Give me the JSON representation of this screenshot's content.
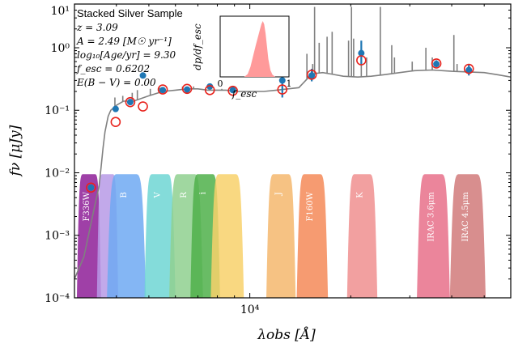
{
  "chart_data": {
    "type": "scatter",
    "title": "",
    "xlabel": "λobs [Å]",
    "ylabel": "fν [μJy]",
    "xscale": "log",
    "yscale": "log",
    "xlim": [
      3000,
      60000
    ],
    "ylim": [
      0.0001,
      5
    ],
    "x_tick_labels": [
      {
        "value": 10000,
        "label": "10⁴"
      }
    ],
    "y_tick_labels": [
      {
        "value": 0.0001,
        "label": "10⁻⁴"
      },
      {
        "value": 0.001,
        "label": "10⁻³"
      },
      {
        "value": 0.01,
        "label": "10⁻²"
      },
      {
        "value": 0.1,
        "label": "10⁻¹"
      },
      {
        "value": 1,
        "label": "10⁰"
      },
      {
        "value": 10,
        "label": "10¹"
      }
    ],
    "info_box": {
      "heading": "Stacked Silver Sample",
      "lines": [
        "z = 3.09",
        "A = 2.49 [M☉ yr⁻¹]",
        "log₁₀[Age/yr] = 9.30",
        "f_esc = 0.6202",
        "E(B − V) = 0.00"
      ]
    },
    "inset": {
      "xlabel": "f_esc",
      "ylabel": "dp/df_esc",
      "x_tick_labels": [
        "0",
        "1"
      ],
      "pdf_color": "#ff9a9a",
      "pdf_x": [
        0.35,
        0.4,
        0.44,
        0.48,
        0.52,
        0.55,
        0.58,
        0.6,
        0.62,
        0.64,
        0.66,
        0.68,
        0.7,
        0.73,
        0.76,
        0.8
      ],
      "pdf_y": [
        0.0,
        0.05,
        0.18,
        0.38,
        0.58,
        0.72,
        0.86,
        0.95,
        1.0,
        0.94,
        0.78,
        0.55,
        0.32,
        0.12,
        0.04,
        0.0
      ]
    },
    "model_spectrum": {
      "color": "#808080",
      "x": [
        3000,
        3200,
        3450,
        3550,
        3600,
        3650,
        3700,
        3780,
        3850,
        4000,
        4200,
        4500,
        5000,
        5500,
        6000,
        6500,
        7000,
        7500,
        8000,
        8500,
        9000,
        10000,
        11000,
        12000,
        13000,
        14000,
        14500,
        15000,
        15800,
        16500,
        17500,
        19000,
        21000,
        23000,
        25000,
        28000,
        31000,
        35000,
        40000,
        45000,
        50000,
        55000,
        60000
      ],
      "y": [
        0.0002,
        0.00045,
        0.003,
        0.006,
        0.012,
        0.025,
        0.045,
        0.08,
        0.1,
        0.12,
        0.14,
        0.14,
        0.17,
        0.2,
        0.21,
        0.22,
        0.22,
        0.21,
        0.21,
        0.21,
        0.2,
        0.2,
        0.2,
        0.21,
        0.22,
        0.23,
        0.28,
        0.34,
        0.39,
        0.4,
        0.38,
        0.35,
        0.34,
        0.35,
        0.37,
        0.4,
        0.43,
        0.44,
        0.42,
        0.41,
        0.4,
        0.37,
        0.34
      ]
    },
    "emission_lines": [
      {
        "x": 3960,
        "y": 0.16
      },
      {
        "x": 4180,
        "y": 0.17
      },
      {
        "x": 4460,
        "y": 0.19
      },
      {
        "x": 4620,
        "y": 0.21
      },
      {
        "x": 5050,
        "y": 0.22
      },
      {
        "x": 5380,
        "y": 0.23
      },
      {
        "x": 6300,
        "y": 0.24
      },
      {
        "x": 6800,
        "y": 0.24
      },
      {
        "x": 8250,
        "y": 0.22
      },
      {
        "x": 14800,
        "y": 0.8
      },
      {
        "x": 15400,
        "y": 0.55
      },
      {
        "x": 15600,
        "y": 4.5
      },
      {
        "x": 16100,
        "y": 1.2
      },
      {
        "x": 17000,
        "y": 1.5
      },
      {
        "x": 17600,
        "y": 1.8
      },
      {
        "x": 19700,
        "y": 1.3
      },
      {
        "x": 20100,
        "y": 4.5
      },
      {
        "x": 20400,
        "y": 1.4
      },
      {
        "x": 21500,
        "y": 0.8
      },
      {
        "x": 22300,
        "y": 0.7
      },
      {
        "x": 24500,
        "y": 4.5
      },
      {
        "x": 26500,
        "y": 1.1
      },
      {
        "x": 27000,
        "y": 0.7
      },
      {
        "x": 30500,
        "y": 0.6
      },
      {
        "x": 33500,
        "y": 1.0
      },
      {
        "x": 35000,
        "y": 0.7
      },
      {
        "x": 40600,
        "y": 1.6
      },
      {
        "x": 41500,
        "y": 0.55
      }
    ],
    "model_photometry": {
      "color": "#e8231d",
      "x": [
        3360,
        3980,
        4400,
        4800,
        5500,
        6500,
        7600,
        8900,
        12500,
        15300,
        21500,
        36000,
        45000
      ],
      "y": [
        0.0058,
        0.065,
        0.135,
        0.115,
        0.215,
        0.22,
        0.21,
        0.205,
        0.215,
        0.37,
        0.63,
        0.56,
        0.46
      ]
    },
    "observed_photometry": {
      "color": "#1f77b4",
      "x": [
        3360,
        3980,
        4400,
        4800,
        5500,
        6500,
        7600,
        8900,
        12500,
        15300,
        21500,
        36000,
        45000
      ],
      "y": [
        0.0058,
        0.105,
        0.135,
        0.36,
        0.21,
        0.215,
        0.24,
        0.21,
        0.3,
        0.36,
        0.82,
        0.55,
        0.44
      ],
      "err_lo": [
        0.0058,
        0.105,
        0.135,
        0.36,
        0.21,
        0.215,
        0.24,
        0.21,
        0.16,
        0.29,
        0.55,
        0.49,
        0.36
      ],
      "err_hi": [
        0.0058,
        0.105,
        0.135,
        0.36,
        0.21,
        0.215,
        0.24,
        0.21,
        0.6,
        0.46,
        1.3,
        0.63,
        0.54
      ]
    },
    "filters": [
      {
        "label": "F336W",
        "lo": 3050,
        "hi": 3600,
        "color": "#8e1f98",
        "peak": 0.0095
      },
      {
        "label": "",
        "lo": 3500,
        "hi": 4050,
        "color": "#b79ae6",
        "peak": 0.0095
      },
      {
        "label": "B",
        "lo": 3750,
        "hi": 4900,
        "color": "#6fa9f2",
        "peak": 0.0095
      },
      {
        "label": "V",
        "lo": 4850,
        "hi": 6000,
        "color": "#6fd6d4",
        "peak": 0.0095
      },
      {
        "label": "R",
        "lo": 5750,
        "hi": 7250,
        "color": "#8fd08f",
        "peak": 0.0095
      },
      {
        "label": "i",
        "lo": 6650,
        "hi": 8150,
        "color": "#4fb04a",
        "peak": 0.0095
      },
      {
        "label": "",
        "lo": 7650,
        "hi": 9600,
        "color": "#f8d16b",
        "peak": 0.0095
      },
      {
        "label": "J",
        "lo": 11200,
        "hi": 13700,
        "color": "#f4b76d",
        "peak": 0.0095
      },
      {
        "label": "F160W",
        "lo": 13800,
        "hi": 17100,
        "color": "#f58a58",
        "peak": 0.0095
      },
      {
        "label": "K",
        "lo": 19500,
        "hi": 24000,
        "color": "#f08f8f",
        "peak": 0.0095
      },
      {
        "label": "IRAC 3.6μm",
        "lo": 31500,
        "hi": 39500,
        "color": "#e8708a",
        "peak": 0.0095
      },
      {
        "label": "IRAC 4.5μm",
        "lo": 39500,
        "hi": 50500,
        "color": "#d17a7a",
        "peak": 0.0095
      }
    ]
  }
}
